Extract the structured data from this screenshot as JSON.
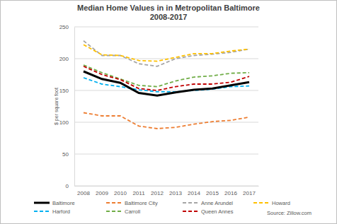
{
  "chart_data": {
    "type": "line",
    "title": "Median Home Values in in Metropolitan Baltimore",
    "subtitle": "2008-2017",
    "y_label": "$ per square foot",
    "annotations": [
      "Source: Zillow.com"
    ],
    "categories": [
      "2008",
      "2009",
      "2010",
      "2011",
      "2012",
      "2013",
      "2014",
      "2015",
      "2016",
      "2017"
    ],
    "series": [
      {
        "name": "Baltimore",
        "color": "#000000",
        "line_style": "solid",
        "values": [
          180,
          168,
          162,
          146,
          142,
          147,
          151,
          153,
          158,
          163
        ]
      },
      {
        "name": "Baltimore City",
        "color": "#ed7d31",
        "line_style": "dashed",
        "values": [
          115,
          110,
          110,
          94,
          90,
          92,
          97,
          101,
          103,
          108
        ]
      },
      {
        "name": "Anne Arundel",
        "color": "#a5a5a5",
        "line_style": "dashed",
        "values": [
          228,
          205,
          205,
          192,
          188,
          200,
          205,
          207,
          210,
          215
        ]
      },
      {
        "name": "Howard",
        "color": "#ffc000",
        "line_style": "dashed",
        "values": [
          222,
          206,
          205,
          197,
          196,
          202,
          208,
          208,
          212,
          215
        ]
      },
      {
        "name": "Harford",
        "color": "#00b0f0",
        "line_style": "dashed",
        "values": [
          170,
          160,
          156,
          151,
          148,
          148,
          150,
          152,
          156,
          157
        ]
      },
      {
        "name": "Carroll",
        "color": "#70ad47",
        "line_style": "dashed",
        "values": [
          190,
          178,
          168,
          158,
          156,
          165,
          171,
          173,
          177,
          178
        ]
      },
      {
        "name": "Queen Annes",
        "color": "#c00000",
        "line_style": "dashed",
        "values": [
          188,
          175,
          167,
          153,
          150,
          156,
          160,
          160,
          163,
          172
        ]
      }
    ],
    "ylim": [
      0,
      250
    ],
    "yticks": [
      0,
      50,
      100,
      150,
      200,
      250
    ],
    "grid": true,
    "legend": "bottom"
  }
}
